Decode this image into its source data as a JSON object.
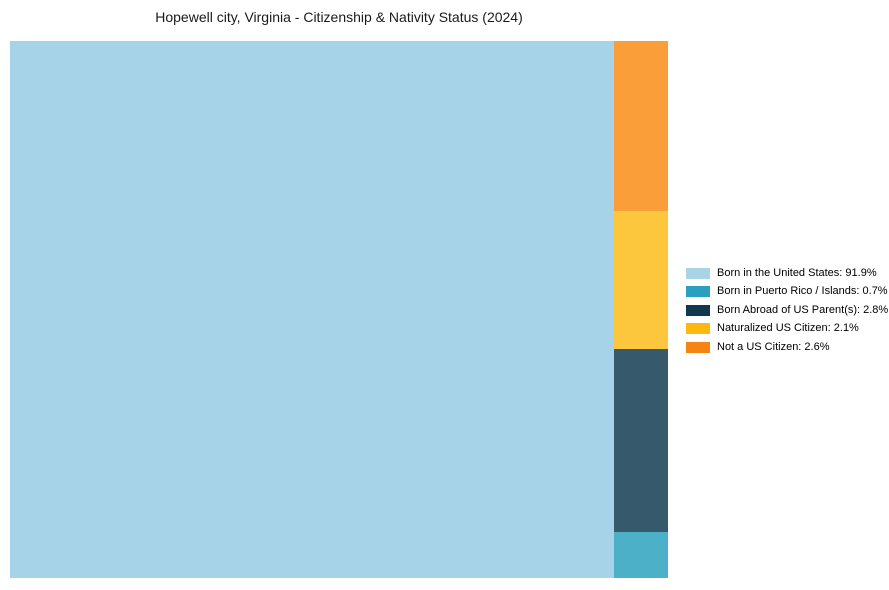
{
  "page": {
    "background_color": "#ffffff"
  },
  "chart_data": {
    "type": "treemap",
    "title": "Hopewell city, Virginia - Citizenship & Nativity Status (2024)",
    "categories": [
      "Born in the United States",
      "Born in Puerto Rico / Islands",
      "Born Abroad of US Parent(s)",
      "Naturalized US Citizen",
      "Not a US Citizen"
    ],
    "values": [
      91.9,
      0.7,
      2.8,
      2.1,
      2.6
    ],
    "legend_labels": [
      "Born in the United States: 91.9%",
      "Born in Puerto Rico / Islands: 0.7%",
      "Born Abroad of US Parent(s): 2.8%",
      "Naturalized US Citizen: 2.1%",
      "Not a US Citizen: 2.6%"
    ],
    "tile_fill_colors": [
      "#A6D3E8",
      "#4BB0C8",
      "#36596C",
      "#FDC73D",
      "#F99E38"
    ],
    "legend_swatch_colors": [
      "#A9D3E7",
      "#2AA0BE",
      "#12384F",
      "#FEB80E",
      "#F58414"
    ],
    "layout": {
      "legend_position": "right",
      "main_tile_index": 0,
      "right_column_order_top_to_bottom": [
        4,
        3,
        2,
        1
      ]
    },
    "title_color": "#1a1a1a"
  }
}
